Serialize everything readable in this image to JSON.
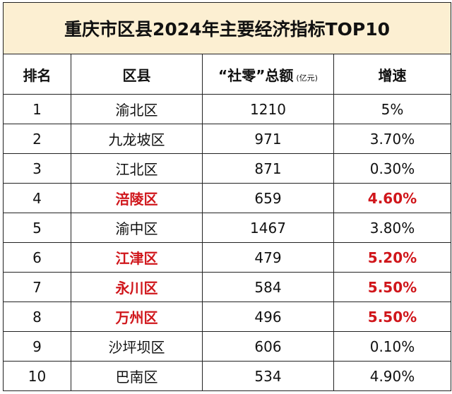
{
  "title": "重庆市区县2024年主要经济指标TOP10",
  "headers": {
    "rank": "排名",
    "district": "区县",
    "retail": "“社零”总额",
    "unit": "(亿元)",
    "growth": "增速"
  },
  "rows": [
    {
      "rank": "1",
      "district": "渝北区",
      "retail": "1210",
      "growth": "5%",
      "highlight": false
    },
    {
      "rank": "2",
      "district": "九龙坡区",
      "retail": "971",
      "growth": "3.70%",
      "highlight": false
    },
    {
      "rank": "3",
      "district": "江北区",
      "retail": "871",
      "growth": "0.30%",
      "highlight": false
    },
    {
      "rank": "4",
      "district": "涪陵区",
      "retail": "659",
      "growth": "4.60%",
      "highlight": true
    },
    {
      "rank": "5",
      "district": "渝中区",
      "retail": "1467",
      "growth": "3.80%",
      "highlight": false
    },
    {
      "rank": "6",
      "district": "江津区",
      "retail": "479",
      "growth": "5.20%",
      "highlight": true
    },
    {
      "rank": "7",
      "district": "永川区",
      "retail": "584",
      "growth": "5.50%",
      "highlight": true
    },
    {
      "rank": "8",
      "district": "万州区",
      "retail": "496",
      "growth": "5.50%",
      "highlight": true
    },
    {
      "rank": "9",
      "district": "沙坪坝区",
      "retail": "606",
      "growth": "0.10%",
      "highlight": false
    },
    {
      "rank": "10",
      "district": "巴南区",
      "retail": "534",
      "growth": "4.90%",
      "highlight": false
    }
  ],
  "colors": {
    "title_background": "#fcefd2",
    "highlight_text": "#d0161b",
    "border": "#222222"
  }
}
